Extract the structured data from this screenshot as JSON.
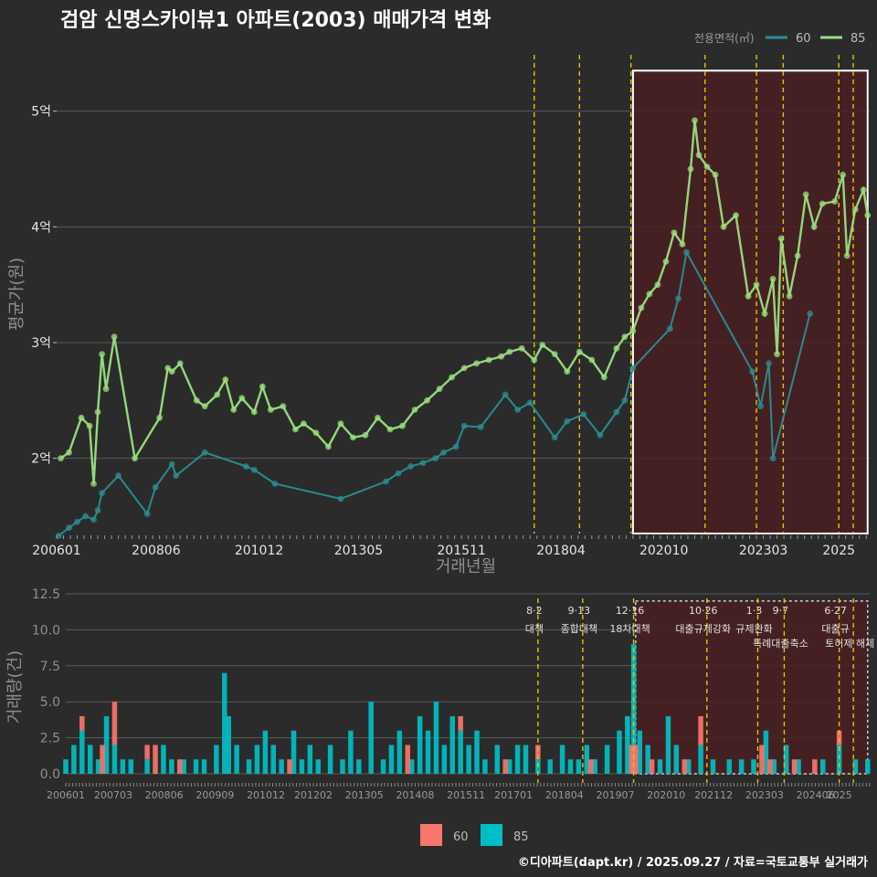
{
  "title": "검암 신명스카이뷰1 아파트(2003) 매매가격 변화",
  "caption": "©디아파트(dapt.kr) / 2025.09.27 / 자료=국토교통부 실거래가",
  "colors": {
    "background": "#2b2b2b",
    "grid": "#5a5a5a",
    "s60": "#2a8f93",
    "s85": "#9be07e",
    "bar60": "#f8766d",
    "bar85": "#00bfc4",
    "event_line": "#e6c200",
    "highlight_fill": "#4a1f22",
    "highlight_border": "#ffffff"
  },
  "chart_data": [
    {
      "type": "line",
      "name": "price",
      "title": "검암 신명스카이뷰1 아파트(2003) 매매가격 변화",
      "xlabel": "거래년월",
      "ylabel": "평균가(원)",
      "x_ticks": [
        "200601",
        "200806",
        "201012",
        "201305",
        "201511",
        "201804",
        "202010",
        "202303",
        "2025"
      ],
      "y_ticks": [
        {
          "value": 2,
          "label": "2억"
        },
        {
          "value": 3,
          "label": "3억"
        },
        {
          "value": 4,
          "label": "4억"
        },
        {
          "value": 5,
          "label": "5억"
        }
      ],
      "xlim": [
        2006.0,
        2025.75
      ],
      "ylim": [
        1.35,
        5.55
      ],
      "legend_title": "전용면적(㎡)",
      "legend": [
        "60",
        "85"
      ],
      "series": [
        {
          "name": "60",
          "points": [
            [
              2006.05,
              1.33
            ],
            [
              2006.3,
              1.4
            ],
            [
              2006.5,
              1.45
            ],
            [
              2006.7,
              1.5
            ],
            [
              2006.9,
              1.47
            ],
            [
              2007.0,
              1.55
            ],
            [
              2007.1,
              1.7
            ],
            [
              2007.5,
              1.85
            ],
            [
              2008.2,
              1.52
            ],
            [
              2008.4,
              1.75
            ],
            [
              2008.8,
              1.95
            ],
            [
              2008.9,
              1.85
            ],
            [
              2009.6,
              2.05
            ],
            [
              2010.6,
              1.93
            ],
            [
              2010.8,
              1.9
            ],
            [
              2011.3,
              1.78
            ],
            [
              2012.9,
              1.65
            ],
            [
              2014.0,
              1.8
            ],
            [
              2014.3,
              1.87
            ],
            [
              2014.6,
              1.93
            ],
            [
              2014.9,
              1.96
            ],
            [
              2015.2,
              2.0
            ],
            [
              2015.4,
              2.05
            ],
            [
              2015.7,
              2.1
            ],
            [
              2015.9,
              2.28
            ],
            [
              2016.3,
              2.27
            ],
            [
              2016.9,
              2.55
            ],
            [
              2017.2,
              2.42
            ],
            [
              2017.5,
              2.48
            ],
            [
              2018.1,
              2.18
            ],
            [
              2018.4,
              2.32
            ],
            [
              2018.8,
              2.38
            ],
            [
              2019.2,
              2.2
            ],
            [
              2019.6,
              2.4
            ],
            [
              2019.8,
              2.5
            ],
            [
              2020.0,
              2.78
            ],
            [
              2020.9,
              3.12
            ],
            [
              2021.1,
              3.38
            ],
            [
              2021.3,
              3.78
            ],
            [
              2022.9,
              2.75
            ],
            [
              2023.1,
              2.45
            ],
            [
              2023.3,
              2.82
            ],
            [
              2023.4,
              2.0
            ],
            [
              2024.3,
              3.25
            ]
          ]
        },
        {
          "name": "85",
          "points": [
            [
              2006.1,
              2.0
            ],
            [
              2006.3,
              2.05
            ],
            [
              2006.6,
              2.35
            ],
            [
              2006.8,
              2.28
            ],
            [
              2006.9,
              1.78
            ],
            [
              2007.0,
              2.4
            ],
            [
              2007.1,
              2.9
            ],
            [
              2007.2,
              2.6
            ],
            [
              2007.4,
              3.05
            ],
            [
              2007.9,
              2.0
            ],
            [
              2008.5,
              2.35
            ],
            [
              2008.7,
              2.78
            ],
            [
              2008.8,
              2.75
            ],
            [
              2009.0,
              2.82
            ],
            [
              2009.4,
              2.5
            ],
            [
              2009.6,
              2.45
            ],
            [
              2009.9,
              2.55
            ],
            [
              2010.1,
              2.68
            ],
            [
              2010.3,
              2.42
            ],
            [
              2010.5,
              2.52
            ],
            [
              2010.8,
              2.4
            ],
            [
              2011.0,
              2.62
            ],
            [
              2011.2,
              2.42
            ],
            [
              2011.5,
              2.45
            ],
            [
              2011.8,
              2.25
            ],
            [
              2012.0,
              2.3
            ],
            [
              2012.3,
              2.22
            ],
            [
              2012.6,
              2.1
            ],
            [
              2012.9,
              2.3
            ],
            [
              2013.2,
              2.18
            ],
            [
              2013.5,
              2.2
            ],
            [
              2013.8,
              2.35
            ],
            [
              2014.1,
              2.25
            ],
            [
              2014.4,
              2.28
            ],
            [
              2014.7,
              2.42
            ],
            [
              2015.0,
              2.5
            ],
            [
              2015.3,
              2.6
            ],
            [
              2015.6,
              2.7
            ],
            [
              2015.9,
              2.78
            ],
            [
              2016.2,
              2.82
            ],
            [
              2016.5,
              2.85
            ],
            [
              2016.8,
              2.88
            ],
            [
              2017.0,
              2.92
            ],
            [
              2017.3,
              2.95
            ],
            [
              2017.6,
              2.85
            ],
            [
              2017.8,
              2.98
            ],
            [
              2018.1,
              2.9
            ],
            [
              2018.4,
              2.75
            ],
            [
              2018.7,
              2.92
            ],
            [
              2019.0,
              2.85
            ],
            [
              2019.3,
              2.7
            ],
            [
              2019.6,
              2.95
            ],
            [
              2019.8,
              3.05
            ],
            [
              2020.0,
              3.1
            ],
            [
              2020.2,
              3.3
            ],
            [
              2020.4,
              3.42
            ],
            [
              2020.6,
              3.5
            ],
            [
              2020.8,
              3.7
            ],
            [
              2021.0,
              3.95
            ],
            [
              2021.2,
              3.85
            ],
            [
              2021.4,
              4.5
            ],
            [
              2021.5,
              4.92
            ],
            [
              2021.6,
              4.62
            ],
            [
              2021.8,
              4.52
            ],
            [
              2022.0,
              4.45
            ],
            [
              2022.2,
              4.0
            ],
            [
              2022.5,
              4.1
            ],
            [
              2022.8,
              3.4
            ],
            [
              2023.0,
              3.5
            ],
            [
              2023.2,
              3.25
            ],
            [
              2023.4,
              3.55
            ],
            [
              2023.5,
              2.9
            ],
            [
              2023.6,
              3.9
            ],
            [
              2023.8,
              3.4
            ],
            [
              2024.0,
              3.75
            ],
            [
              2024.2,
              4.28
            ],
            [
              2024.4,
              4.0
            ],
            [
              2024.6,
              4.2
            ],
            [
              2024.9,
              4.22
            ],
            [
              2025.1,
              4.45
            ],
            [
              2025.2,
              3.75
            ],
            [
              2025.4,
              4.15
            ],
            [
              2025.6,
              4.32
            ],
            [
              2025.7,
              4.1
            ]
          ]
        }
      ],
      "event_x": [
        2017.6,
        2018.7,
        2019.95,
        2021.75,
        2023.0,
        2023.65,
        2025.0,
        2025.35
      ],
      "highlight": {
        "x": [
          2020.0,
          2025.7
        ],
        "y": [
          1.35,
          5.35
        ]
      }
    },
    {
      "type": "bar",
      "name": "volume",
      "ylabel": "거래량(건)",
      "legend": [
        "60",
        "85"
      ],
      "x_ticks": [
        "200601",
        "200703",
        "200806",
        "200909",
        "201012",
        "201202",
        "201305",
        "201408",
        "201511",
        "201701",
        "201804",
        "201907",
        "202010",
        "202112",
        "202303",
        "202406",
        "2025"
      ],
      "y_ticks": [
        {
          "value": 0,
          "label": "0.0"
        },
        {
          "value": 2.5,
          "label": "2.5"
        },
        {
          "value": 5,
          "label": "5.0"
        },
        {
          "value": 7.5,
          "label": "7.5"
        },
        {
          "value": 10,
          "label": "10.0"
        },
        {
          "value": 12.5,
          "label": "12.5"
        }
      ],
      "xlim": [
        2006.0,
        2025.75
      ],
      "ylim": [
        0,
        12.5
      ],
      "series": [
        {
          "name": "60",
          "values": [
            [
              2006.4,
              1
            ],
            [
              2006.9,
              2
            ],
            [
              2007.2,
              3
            ],
            [
              2008.0,
              1
            ],
            [
              2008.2,
              2
            ],
            [
              2008.8,
              1
            ],
            [
              2011.5,
              1
            ],
            [
              2014.4,
              2
            ],
            [
              2015.7,
              1
            ],
            [
              2016.8,
              1
            ],
            [
              2017.6,
              1
            ],
            [
              2018.9,
              1
            ],
            [
              2019.9,
              2
            ],
            [
              2020.0,
              2
            ],
            [
              2020.4,
              1
            ],
            [
              2021.2,
              1
            ],
            [
              2021.6,
              2
            ],
            [
              2023.1,
              2
            ],
            [
              2023.3,
              1
            ],
            [
              2023.9,
              1
            ],
            [
              2024.4,
              1
            ],
            [
              2025.0,
              1
            ]
          ]
        },
        {
          "name": "85",
          "values": [
            [
              2006.0,
              1
            ],
            [
              2006.2,
              2
            ],
            [
              2006.4,
              3
            ],
            [
              2006.6,
              2
            ],
            [
              2006.8,
              1
            ],
            [
              2007.0,
              4
            ],
            [
              2007.2,
              2
            ],
            [
              2007.4,
              1
            ],
            [
              2007.6,
              1
            ],
            [
              2008.0,
              1
            ],
            [
              2008.4,
              2
            ],
            [
              2008.6,
              1
            ],
            [
              2008.9,
              1
            ],
            [
              2009.2,
              1
            ],
            [
              2009.4,
              1
            ],
            [
              2009.7,
              2
            ],
            [
              2009.9,
              7
            ],
            [
              2010.0,
              4
            ],
            [
              2010.2,
              2
            ],
            [
              2010.5,
              1
            ],
            [
              2010.7,
              2
            ],
            [
              2010.9,
              3
            ],
            [
              2011.1,
              2
            ],
            [
              2011.3,
              1
            ],
            [
              2011.6,
              3
            ],
            [
              2011.8,
              1
            ],
            [
              2012.0,
              2
            ],
            [
              2012.2,
              1
            ],
            [
              2012.5,
              2
            ],
            [
              2012.8,
              1
            ],
            [
              2013.0,
              3
            ],
            [
              2013.2,
              1
            ],
            [
              2013.5,
              5
            ],
            [
              2013.8,
              1
            ],
            [
              2014.0,
              2
            ],
            [
              2014.2,
              3
            ],
            [
              2014.5,
              1
            ],
            [
              2014.7,
              4
            ],
            [
              2014.9,
              3
            ],
            [
              2015.1,
              5
            ],
            [
              2015.3,
              2
            ],
            [
              2015.5,
              4
            ],
            [
              2015.7,
              3
            ],
            [
              2015.9,
              2
            ],
            [
              2016.1,
              3
            ],
            [
              2016.3,
              1
            ],
            [
              2016.6,
              2
            ],
            [
              2016.9,
              1
            ],
            [
              2017.1,
              2
            ],
            [
              2017.3,
              2
            ],
            [
              2017.6,
              1
            ],
            [
              2017.9,
              1
            ],
            [
              2018.2,
              2
            ],
            [
              2018.4,
              1
            ],
            [
              2018.6,
              1
            ],
            [
              2018.8,
              2
            ],
            [
              2019.0,
              1
            ],
            [
              2019.3,
              2
            ],
            [
              2019.6,
              3
            ],
            [
              2019.8,
              4
            ],
            [
              2019.95,
              9
            ],
            [
              2020.1,
              3
            ],
            [
              2020.3,
              2
            ],
            [
              2020.6,
              1
            ],
            [
              2020.8,
              4
            ],
            [
              2021.0,
              2
            ],
            [
              2021.3,
              1
            ],
            [
              2021.6,
              2
            ],
            [
              2021.9,
              1
            ],
            [
              2022.3,
              1
            ],
            [
              2022.6,
              1
            ],
            [
              2022.9,
              1
            ],
            [
              2023.2,
              3
            ],
            [
              2023.4,
              1
            ],
            [
              2023.7,
              2
            ],
            [
              2024.0,
              1
            ],
            [
              2024.6,
              1
            ],
            [
              2025.0,
              2
            ],
            [
              2025.4,
              1
            ],
            [
              2025.7,
              1
            ]
          ]
        }
      ],
      "events": [
        {
          "x": 2017.6,
          "date": "8·2",
          "text": "대책"
        },
        {
          "x": 2018.7,
          "date": "9·13",
          "text": "종합대책"
        },
        {
          "x": 2019.95,
          "date": "12·16",
          "text": "18차대책"
        },
        {
          "x": 2021.75,
          "date": "10·26",
          "text": "대출규제강화"
        },
        {
          "x": 2023.0,
          "date": "1·3",
          "text": "규제완화"
        },
        {
          "x": 2023.65,
          "date": "9·7",
          "text": "특례대출축소"
        },
        {
          "x": 2025.0,
          "date": "6·27",
          "text": "대출규"
        },
        {
          "x": 2025.35,
          "date": "",
          "text": "토허제 해제"
        }
      ],
      "highlight": {
        "x": [
          2020.0,
          2025.7
        ],
        "y": [
          0,
          12.0
        ]
      }
    }
  ]
}
